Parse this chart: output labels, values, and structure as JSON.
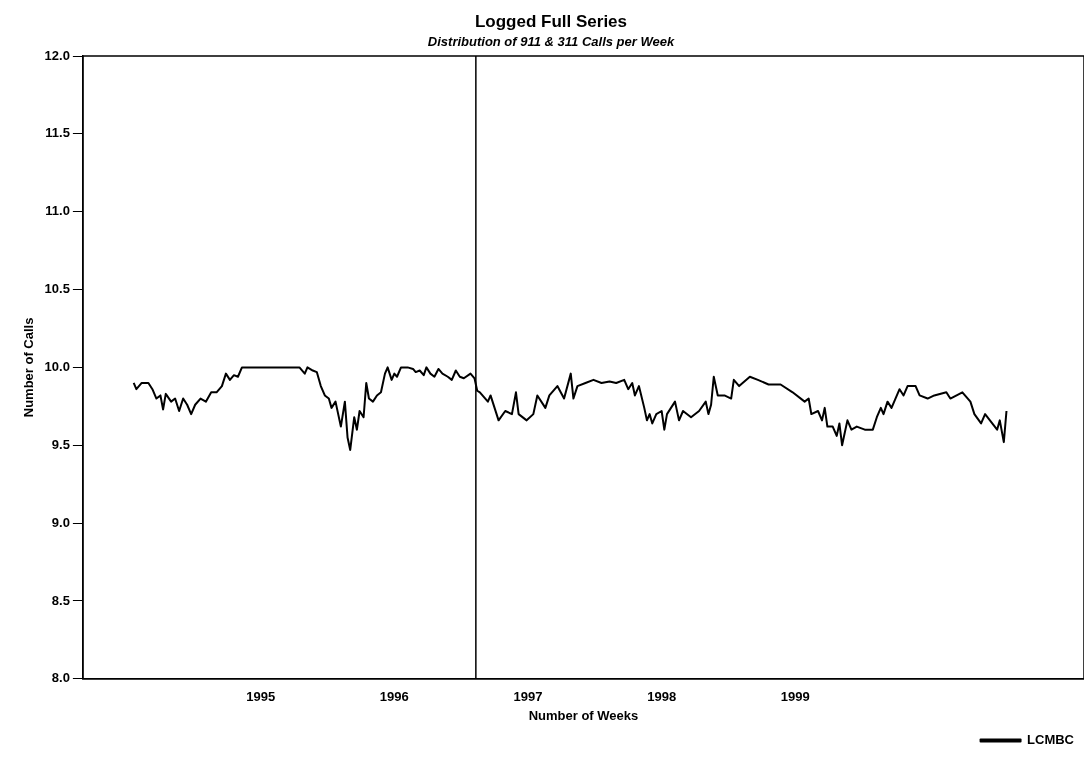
{
  "chart_data": {
    "type": "line",
    "title": "Logged Full Series",
    "subtitle": "Distribution of 911 & 311 Calls per Week",
    "xlabel": "Number of Weeks",
    "ylabel": "Number of Calls",
    "xlim": [
      1993.67,
      2001.16
    ],
    "xticks": [
      1995,
      1996,
      1997,
      1998,
      1999
    ],
    "ylim": [
      8,
      12
    ],
    "yticks": [
      {
        "value": 8,
        "label": "8.0"
      },
      {
        "value": 8.5,
        "label": "8.5"
      },
      {
        "value": 9,
        "label": "9.0"
      },
      {
        "value": 9.5,
        "label": "9.5"
      },
      {
        "value": 10,
        "label": "10.0"
      },
      {
        "value": 10.5,
        "label": "10.5"
      },
      {
        "value": 11,
        "label": "11.0"
      },
      {
        "value": 11.5,
        "label": "11.5"
      },
      {
        "value": 12,
        "label": "12.0"
      }
    ],
    "grid": false,
    "legend": "bottom right",
    "marker": "none",
    "line_style": "solid",
    "ref_lines": [
      {
        "axis": "x",
        "value": 1996.61,
        "color": "#000000"
      }
    ],
    "series": [
      {
        "name": "LCMBC",
        "color": "#000000",
        "x": [
          1994.05,
          1994.07,
          1994.11,
          1994.16,
          1994.19,
          1994.22,
          1994.25,
          1994.27,
          1994.29,
          1994.33,
          1994.36,
          1994.39,
          1994.42,
          1994.45,
          1994.48,
          1994.51,
          1994.55,
          1994.59,
          1994.63,
          1994.67,
          1994.71,
          1994.74,
          1994.77,
          1994.8,
          1994.83,
          1994.86,
          1994.9,
          1995.02,
          1995.17,
          1995.29,
          1995.33,
          1995.35,
          1995.39,
          1995.42,
          1995.45,
          1995.48,
          1995.51,
          1995.53,
          1995.56,
          1995.58,
          1995.6,
          1995.63,
          1995.65,
          1995.67,
          1995.7,
          1995.72,
          1995.74,
          1995.77,
          1995.79,
          1995.81,
          1995.84,
          1995.87,
          1995.9,
          1995.93,
          1995.95,
          1995.98,
          1996,
          1996.02,
          1996.05,
          1996.1,
          1996.14,
          1996.16,
          1996.19,
          1996.22,
          1996.24,
          1996.27,
          1996.3,
          1996.33,
          1996.36,
          1996.4,
          1996.43,
          1996.46,
          1996.49,
          1996.52,
          1996.57,
          1996.6,
          1996.62,
          1996.64,
          1996.7,
          1996.72,
          1996.78,
          1996.83,
          1996.88,
          1996.91,
          1996.93,
          1996.99,
          1997.04,
          1997.07,
          1997.13,
          1997.16,
          1997.22,
          1997.27,
          1997.32,
          1997.34,
          1997.37,
          1997.43,
          1997.49,
          1997.55,
          1997.61,
          1997.66,
          1997.72,
          1997.75,
          1997.78,
          1997.8,
          1997.83,
          1997.87,
          1997.89,
          1997.91,
          1997.93,
          1997.96,
          1998,
          1998.02,
          1998.04,
          1998.1,
          1998.13,
          1998.16,
          1998.22,
          1998.28,
          1998.33,
          1998.35,
          1998.37,
          1998.39,
          1998.42,
          1998.47,
          1998.52,
          1998.54,
          1998.58,
          1998.66,
          1998.72,
          1998.8,
          1998.89,
          1998.98,
          1999.07,
          1999.1,
          1999.12,
          1999.17,
          1999.2,
          1999.22,
          1999.24,
          1999.28,
          1999.31,
          1999.33,
          1999.35,
          1999.37,
          1999.39,
          1999.42,
          1999.46,
          1999.52,
          1999.58,
          1999.61,
          1999.64,
          1999.66,
          1999.69,
          1999.72,
          1999.78,
          1999.81,
          1999.84,
          1999.9,
          1999.93,
          1999.99,
          2000.04,
          2000.13,
          2000.16,
          2000.25,
          2000.31,
          2000.34,
          2000.39,
          2000.42,
          2000.51,
          2000.53,
          2000.56,
          2000.58
        ],
        "values": [
          9.9,
          9.86,
          9.9,
          9.9,
          9.86,
          9.8,
          9.82,
          9.73,
          9.83,
          9.78,
          9.8,
          9.72,
          9.8,
          9.76,
          9.7,
          9.76,
          9.8,
          9.78,
          9.84,
          9.84,
          9.88,
          9.96,
          9.92,
          9.95,
          9.94,
          10,
          10,
          10,
          10,
          10,
          9.96,
          10,
          9.98,
          9.97,
          9.88,
          9.82,
          9.8,
          9.74,
          9.78,
          9.7,
          9.62,
          9.78,
          9.55,
          9.47,
          9.68,
          9.6,
          9.72,
          9.68,
          9.9,
          9.8,
          9.78,
          9.82,
          9.84,
          9.96,
          10,
          9.92,
          9.96,
          9.94,
          10,
          10,
          9.99,
          9.97,
          9.98,
          9.95,
          10,
          9.96,
          9.94,
          9.99,
          9.96,
          9.94,
          9.92,
          9.98,
          9.94,
          9.93,
          9.96,
          9.93,
          9.85,
          9.84,
          9.78,
          9.82,
          9.66,
          9.72,
          9.7,
          9.84,
          9.7,
          9.66,
          9.7,
          9.82,
          9.74,
          9.82,
          9.88,
          9.8,
          9.96,
          9.8,
          9.88,
          9.9,
          9.92,
          9.9,
          9.91,
          9.9,
          9.92,
          9.86,
          9.9,
          9.82,
          9.88,
          9.74,
          9.66,
          9.7,
          9.64,
          9.7,
          9.72,
          9.6,
          9.7,
          9.78,
          9.66,
          9.72,
          9.68,
          9.72,
          9.78,
          9.7,
          9.76,
          9.94,
          9.82,
          9.82,
          9.8,
          9.92,
          9.88,
          9.94,
          9.92,
          9.89,
          9.89,
          9.84,
          9.78,
          9.8,
          9.7,
          9.72,
          9.66,
          9.74,
          9.62,
          9.62,
          9.56,
          9.64,
          9.5,
          9.58,
          9.66,
          9.6,
          9.62,
          9.6,
          9.6,
          9.68,
          9.74,
          9.7,
          9.78,
          9.74,
          9.86,
          9.82,
          9.88,
          9.88,
          9.82,
          9.8,
          9.82,
          9.84,
          9.8,
          9.84,
          9.78,
          9.7,
          9.64,
          9.7,
          9.6,
          9.66,
          9.52,
          9.72
        ]
      }
    ]
  }
}
